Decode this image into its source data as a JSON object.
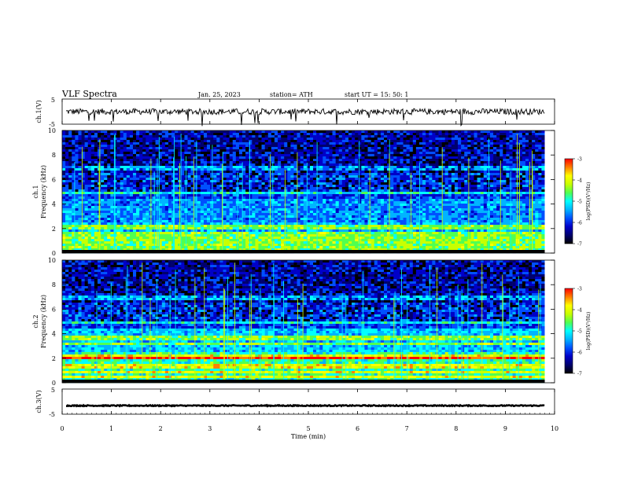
{
  "header": {
    "title": "VLF  Spectra",
    "date": "Jan. 25, 2023",
    "station": "station= ATH",
    "start": "start  UT  =    15: 50: 1"
  },
  "colors": {
    "spectrogram_palette": [
      "#000000",
      "#00006e",
      "#0000c8",
      "#0050ff",
      "#00b4ff",
      "#00ffff",
      "#50ff50",
      "#c8ff00",
      "#ffff00",
      "#ff8000",
      "#ff0000",
      "#ffffff"
    ],
    "waveform": "#000000"
  },
  "chart_data": [
    {
      "type": "line",
      "panel": "ch1-waveform",
      "ylabel": "ch.1(V)",
      "ylim": [
        -5,
        5
      ],
      "yticks": [
        "5",
        "-5"
      ],
      "description_values": {
        "level": 0,
        "noise_amplitude": 1.2
      }
    },
    {
      "type": "heatmap",
      "panel": "ch1-spectrogram",
      "ylabel_channel": "ch.1",
      "ylabel": "Frequency (kHz)",
      "ylim": [
        0,
        10
      ],
      "yticks": [
        "0",
        "2",
        "4",
        "6",
        "8",
        "10"
      ],
      "colorbar": {
        "label": "log(PSD)(V²/Hz)",
        "range": [
          -7,
          -3
        ],
        "ticks": [
          "-3",
          "-4",
          "-5",
          "-6",
          "-7"
        ]
      },
      "bands_khz": [
        0.3,
        0.5,
        0.8,
        1.2,
        1.5,
        2.0,
        2.2,
        4.9,
        6.9
      ]
    },
    {
      "type": "heatmap",
      "panel": "ch2-spectrogram",
      "ylabel_channel": "ch.2",
      "ylabel": "Frequency (kHz)",
      "ylim": [
        0,
        10
      ],
      "yticks": [
        "0",
        "2",
        "4",
        "6",
        "8",
        "10"
      ],
      "colorbar": {
        "label": "log(PSD)(V²/Hz)",
        "range": [
          -7,
          -3
        ],
        "ticks": [
          "-3",
          "-4",
          "-5",
          "-6",
          "-7"
        ]
      },
      "bands_khz": [
        0.5,
        0.9,
        1.4,
        2.0,
        2.1,
        3.2,
        3.7,
        4.9,
        6.9
      ]
    },
    {
      "type": "line",
      "panel": "ch3-waveform",
      "ylabel": "ch.3(V)",
      "ylim": [
        -5,
        5
      ],
      "yticks": [
        "5",
        "-5"
      ],
      "description_values": {
        "level": -1.6,
        "noise_amplitude": 0.2
      }
    }
  ],
  "xaxis": {
    "label": "Time  (min)",
    "range": [
      0,
      10
    ],
    "ticks": [
      "0",
      "1",
      "2",
      "3",
      "4",
      "5",
      "6",
      "7",
      "8",
      "9",
      "10"
    ],
    "data_end": 9.8
  }
}
